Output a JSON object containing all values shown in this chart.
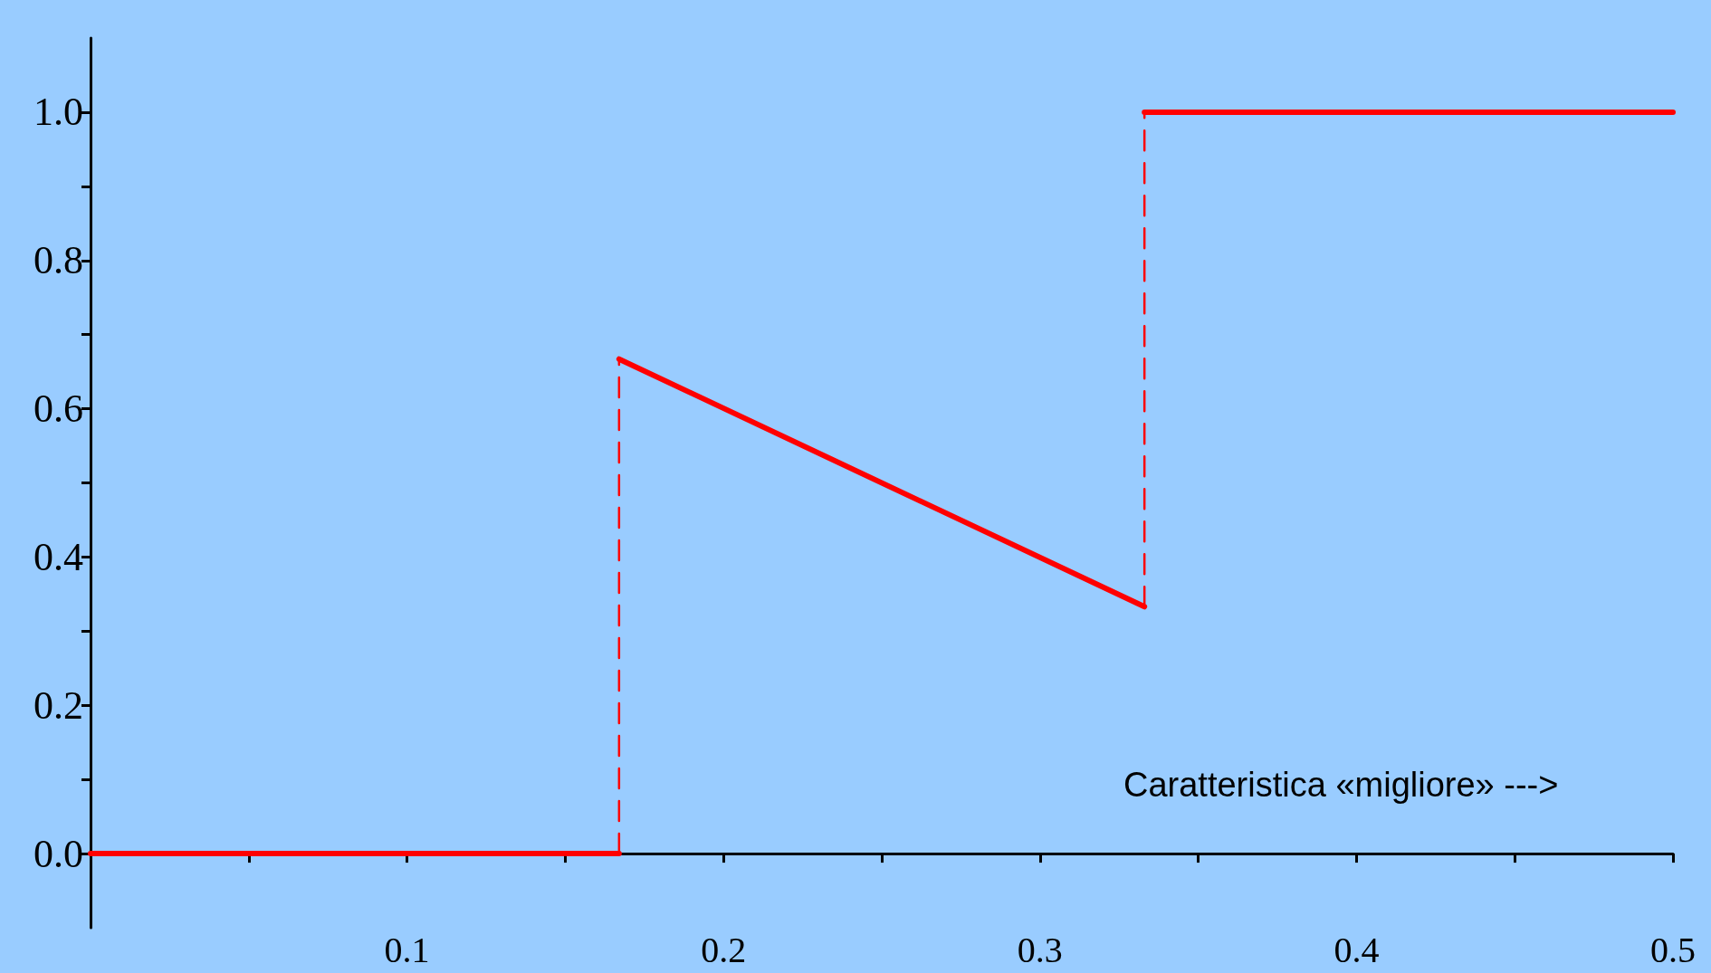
{
  "chart_data": {
    "type": "line",
    "xlim": [
      0,
      0.5
    ],
    "ylim": [
      -0.1,
      1.1
    ],
    "xticks": [
      {
        "value": 0.05,
        "label": null
      },
      {
        "value": 0.1,
        "label": "0.1"
      },
      {
        "value": 0.15,
        "label": null
      },
      {
        "value": 0.2,
        "label": "0.2"
      },
      {
        "value": 0.25,
        "label": null
      },
      {
        "value": 0.3,
        "label": "0.3"
      },
      {
        "value": 0.35,
        "label": null
      },
      {
        "value": 0.4,
        "label": "0.4"
      },
      {
        "value": 0.45,
        "label": null
      },
      {
        "value": 0.5,
        "label": "0.5"
      }
    ],
    "yticks": [
      {
        "value": 0,
        "label": "0.0"
      },
      {
        "value": 0.1,
        "label": null
      },
      {
        "value": 0.2,
        "label": "0.2"
      },
      {
        "value": 0.3,
        "label": null
      },
      {
        "value": 0.4,
        "label": "0.4"
      },
      {
        "value": 0.5,
        "label": null
      },
      {
        "value": 0.6,
        "label": "0.6"
      },
      {
        "value": 0.7,
        "label": null
      },
      {
        "value": 0.8,
        "label": "0.8"
      },
      {
        "value": 0.9,
        "label": null
      },
      {
        "value": 1,
        "label": "1.0"
      }
    ],
    "marker": "none",
    "series": [
      {
        "color": "#ff0000",
        "x": [
          0,
          0.167
        ],
        "values": [
          0,
          0
        ]
      },
      {
        "color": "#ff0000",
        "x": [
          0.167,
          0.333
        ],
        "values": [
          0.667,
          0.333
        ]
      },
      {
        "color": "#ff0000",
        "x": [
          0.333,
          0.5
        ],
        "values": [
          1,
          1
        ]
      },
      {
        "color": "#ff0000",
        "line_style": "dashed",
        "x": [
          0.167,
          0.167
        ],
        "values": [
          0,
          0.667
        ]
      },
      {
        "color": "#ff0000",
        "line_style": "dashed",
        "x": [
          0.333,
          0.333
        ],
        "values": [
          0.333,
          1
        ]
      }
    ],
    "annotations": [
      "Caratteristica «migliore» --->"
    ]
  }
}
